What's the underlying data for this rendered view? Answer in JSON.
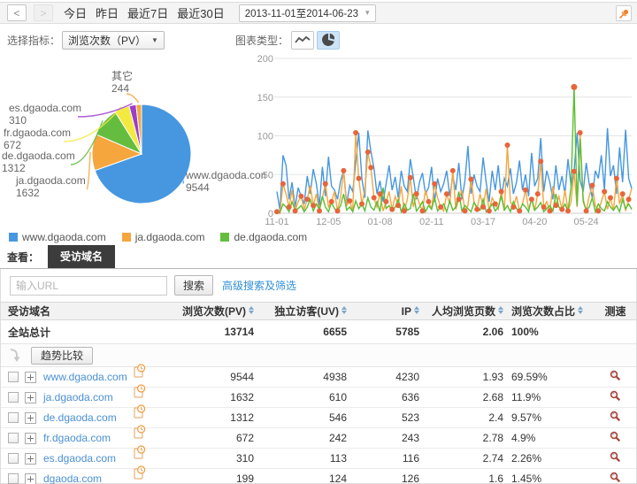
{
  "toolbar": {
    "prev": "<",
    "next": ">",
    "quick_ranges": [
      "今日",
      "昨日",
      "最近7日",
      "最近30日"
    ],
    "date_range": "2013-11-01至2014-06-23"
  },
  "controls": {
    "metric_label": "选择指标：",
    "metric_value": "浏览次数（PV）",
    "chart_type_label": "图表类型："
  },
  "icons": {
    "pin": "pushpin",
    "line_chart": "zigzag-line",
    "pie_chart": "pie-wedge",
    "history": "page-with-clock",
    "speed_test": "magnifier",
    "expand": "plus-box",
    "sort": "up-down-triangles",
    "move_down": "curved-down-arrow",
    "chevron": "▾"
  },
  "colors": {
    "blue": "#4697e0",
    "orange": "#f5a63d",
    "green": "#64bd3f",
    "line_green": "#5abe35",
    "yellow": "#f2ea3e",
    "purple": "#9c3dcc",
    "dot": "#e8653a",
    "tab_bg": "#3c3c3c",
    "link": "#4a90d2"
  },
  "chart_data": [
    {
      "type": "pie",
      "series": [
        {
          "name": "www.dgaoda.com",
          "value": 9544
        },
        {
          "name": "ja.dgaoda.com",
          "value": 1632
        },
        {
          "name": "de.dgaoda.com",
          "value": 1312
        },
        {
          "name": "fr.dgaoda.com",
          "value": 672
        },
        {
          "name": "es.dgaoda.com",
          "value": 310
        },
        {
          "name": "其它",
          "value": 244
        }
      ],
      "colors": [
        "#4697e0",
        "#f5a63d",
        "#64bd3f",
        "#f2ea3e",
        "#9c3dcc",
        "#f5a63d"
      ]
    },
    {
      "type": "line",
      "ylim": [
        0,
        200
      ],
      "yticks": [
        0,
        50,
        100,
        150,
        200
      ],
      "xticks": [
        {
          "label": "11-01",
          "i": 0
        },
        {
          "label": "12-05",
          "i": 17
        },
        {
          "label": "01-08",
          "i": 34
        },
        {
          "label": "02-11",
          "i": 51
        },
        {
          "label": "03-17",
          "i": 68
        },
        {
          "label": "04-20",
          "i": 85
        },
        {
          "label": "05-24",
          "i": 102
        }
      ],
      "series": [
        {
          "name": "www.dgaoda.com",
          "color": "#4697e0",
          "values": [
            28,
            4,
            75,
            62,
            18,
            40,
            8,
            33,
            22,
            12,
            48,
            25,
            57,
            38,
            10,
            60,
            22,
            73,
            35,
            30,
            18,
            42,
            55,
            12,
            36,
            28,
            65,
            104,
            45,
            20,
            107,
            80,
            58,
            25,
            42,
            15,
            38,
            62,
            30,
            47,
            20,
            55,
            35,
            28,
            70,
            46,
            18,
            40,
            52,
            25,
            33,
            60,
            15,
            45,
            28,
            38,
            55,
            22,
            48,
            30,
            65,
            18,
            42,
            87,
            25,
            50,
            35,
            28,
            72,
            40,
            15,
            55,
            30,
            62,
            20,
            45,
            35,
            58,
            25,
            40,
            68,
            30,
            50,
            22,
            78,
            35,
            45,
            97,
            28,
            55,
            40,
            18,
            62,
            30,
            48,
            25,
            70,
            35,
            55,
            104,
            42,
            28,
            65,
            38,
            20,
            55,
            45,
            75,
            30,
            110,
            48,
            62,
            25,
            85,
            40,
            108,
            45,
            32
          ]
        },
        {
          "name": "ja.dgaoda.com",
          "color": "#f5a63d",
          "marker": "#e8653a",
          "values": [
            2,
            0,
            38,
            25,
            8,
            30,
            3,
            15,
            22,
            5,
            18,
            36,
            10,
            25,
            3,
            20,
            38,
            8,
            15,
            28,
            3,
            22,
            55,
            10,
            16,
            3,
            104,
            45,
            12,
            30,
            79,
            59,
            20,
            8,
            25,
            3,
            15,
            28,
            5,
            22,
            10,
            35,
            3,
            18,
            46,
            8,
            25,
            12,
            3,
            30,
            15,
            5,
            38,
            20,
            8,
            3,
            25,
            12,
            55,
            5,
            18,
            30,
            3,
            10,
            44,
            15,
            5,
            25,
            8,
            32,
            3,
            20,
            12,
            5,
            28,
            3,
            88,
            15,
            8,
            22,
            3,
            12,
            30,
            5,
            18,
            3,
            25,
            67,
            8,
            15,
            3,
            35,
            10,
            22,
            5,
            30,
            3,
            15,
            54,
            8,
            104,
            18,
            3,
            22,
            36,
            10,
            3,
            15,
            28,
            5,
            20,
            3,
            45,
            12,
            25,
            3,
            18,
            32
          ]
        },
        {
          "name": "de.dgaoda.com",
          "color": "#5abe35",
          "values": [
            3,
            1,
            12,
            8,
            2,
            15,
            4,
            6,
            10,
            2,
            8,
            18,
            3,
            12,
            5,
            22,
            8,
            2,
            14,
            6,
            3,
            10,
            25,
            4,
            8,
            2,
            16,
            6,
            12,
            3,
            20,
            8,
            4,
            15,
            2,
            33,
            6,
            10,
            3,
            8,
            18,
            2,
            12,
            4,
            6,
            25,
            3,
            8,
            15,
            2,
            10,
            5,
            20,
            3,
            8,
            12,
            2,
            16,
            4,
            8,
            28,
            3,
            10,
            6,
            2,
            14,
            8,
            4,
            18,
            2,
            6,
            12,
            3,
            8,
            22,
            4,
            10,
            2,
            15,
            6,
            3,
            12,
            8,
            2,
            20,
            4,
            8,
            14,
            2,
            6,
            10,
            3,
            25,
            8,
            4,
            12,
            2,
            35,
            163,
            10,
            96,
            15,
            4,
            8,
            20,
            2,
            12,
            6,
            3,
            15,
            8,
            4,
            10,
            2,
            18,
            6,
            12,
            5
          ]
        }
      ]
    }
  ],
  "legend": [
    {
      "label": "www.dgaoda.com",
      "color": "#4697e0"
    },
    {
      "label": "ja.dgaoda.com",
      "color": "#f5a63d"
    },
    {
      "label": "de.dgaoda.com",
      "color": "#64bd3f"
    }
  ],
  "view": {
    "label": "查看：",
    "tab": "受访域名"
  },
  "search": {
    "placeholder": "输入URL",
    "button": "搜索",
    "advanced": "高级搜索及筛选"
  },
  "table": {
    "columns": [
      {
        "label": "受访域名",
        "sortable": false
      },
      {
        "label": "浏览次数(PV)",
        "sortable": true
      },
      {
        "label": "独立访客(UV)",
        "sortable": true
      },
      {
        "label": "IP",
        "sortable": true
      },
      {
        "label": "人均浏览页数",
        "sortable": true
      },
      {
        "label": "浏览次数占比",
        "sortable": true
      },
      {
        "label": "测速",
        "sortable": false
      }
    ],
    "total_row": {
      "label": "全站总计",
      "pv": "13714",
      "uv": "6655",
      "ip": "5785",
      "avg": "2.06",
      "ratio": "100%"
    },
    "compare_button": "趋势比较",
    "rows": [
      {
        "domain": "www.dgaoda.com",
        "pv": "9544",
        "uv": "4938",
        "ip": "4230",
        "avg": "1.93",
        "ratio": "69.59%"
      },
      {
        "domain": "ja.dgaoda.com",
        "pv": "1632",
        "uv": "610",
        "ip": "636",
        "avg": "2.68",
        "ratio": "11.9%"
      },
      {
        "domain": "de.dgaoda.com",
        "pv": "1312",
        "uv": "546",
        "ip": "523",
        "avg": "2.4",
        "ratio": "9.57%"
      },
      {
        "domain": "fr.dgaoda.com",
        "pv": "672",
        "uv": "242",
        "ip": "243",
        "avg": "2.78",
        "ratio": "4.9%"
      },
      {
        "domain": "es.dgaoda.com",
        "pv": "310",
        "uv": "113",
        "ip": "116",
        "avg": "2.74",
        "ratio": "2.26%"
      },
      {
        "domain": "dgaoda.com",
        "pv": "199",
        "uv": "124",
        "ip": "126",
        "avg": "1.6",
        "ratio": "1.45%"
      }
    ]
  }
}
